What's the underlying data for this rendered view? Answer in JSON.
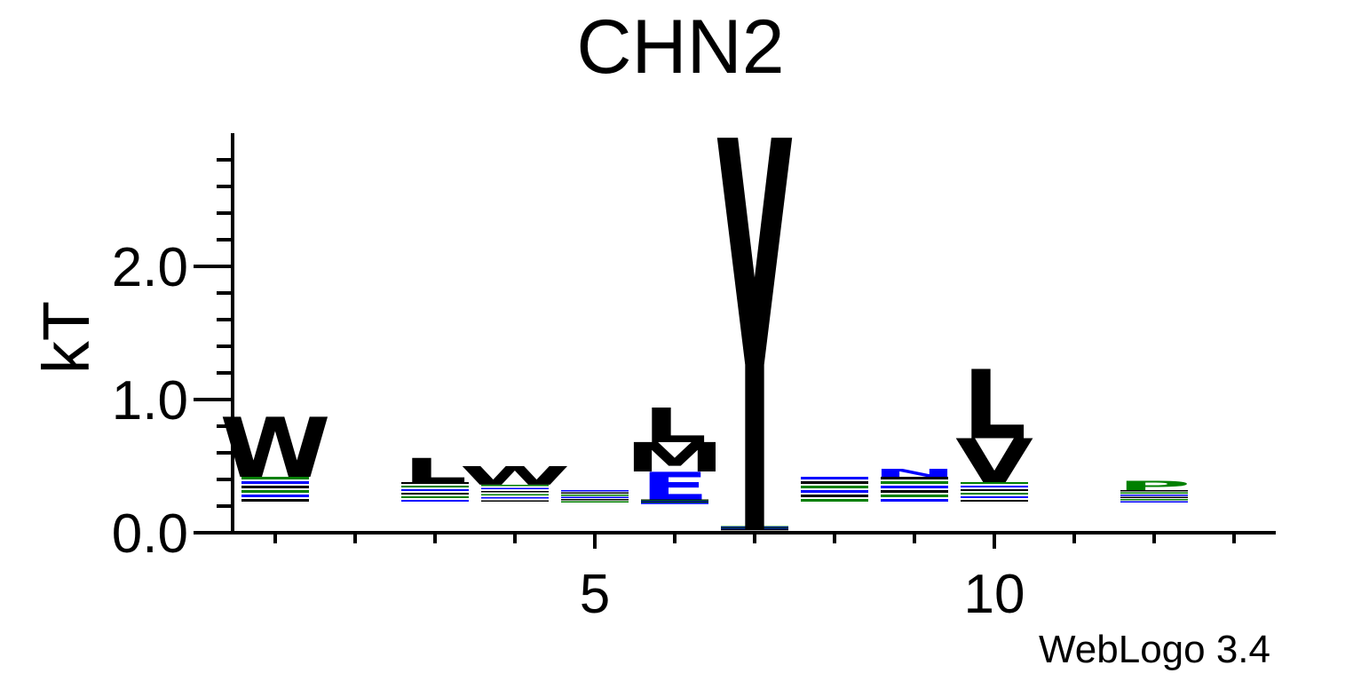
{
  "chart_data": {
    "type": "sequence-logo",
    "title": "CHN2",
    "ylabel": "kT",
    "xlabel": "",
    "ylim": [
      0,
      2.9
    ],
    "yticks": [
      "0.0",
      "1.0",
      "2.0"
    ],
    "xticks": [
      "5",
      "10"
    ],
    "positions": [
      1,
      2,
      3,
      4,
      5,
      6,
      7,
      8,
      9,
      10,
      11,
      12,
      13
    ],
    "colors": {
      "hydrophobic": "#000000",
      "polar": "#008000",
      "charged": "#0000ff"
    },
    "columns": [
      {
        "pos": 1,
        "letters": [
          {
            "aa": "W",
            "value": 0.45,
            "color": "#000000"
          }
        ],
        "minor_stack": 0.42
      },
      {
        "pos": 2,
        "letters": []
      },
      {
        "pos": 3,
        "letters": [
          {
            "aa": "L",
            "value": 0.18,
            "color": "#000000"
          }
        ],
        "minor_stack": 0.38
      },
      {
        "pos": 4,
        "letters": [
          {
            "aa": "W",
            "value": 0.14,
            "color": "#000000"
          }
        ],
        "minor_stack": 0.36
      },
      {
        "pos": 5,
        "letters": [],
        "minor_stack": 0.32
      },
      {
        "pos": 6,
        "letters": [
          {
            "aa": "L",
            "value": 0.26,
            "color": "#000000"
          },
          {
            "aa": "M",
            "value": 0.22,
            "color": "#000000"
          },
          {
            "aa": "E",
            "value": 0.21,
            "color": "#0000ff"
          }
        ],
        "minor_stack": 0.25
      },
      {
        "pos": 7,
        "letters": [
          {
            "aa": "Y",
            "value": 2.95,
            "color": "#000000"
          }
        ],
        "minor_stack": 0.05
      },
      {
        "pos": 8,
        "letters": [],
        "minor_stack": 0.42
      },
      {
        "pos": 9,
        "letters": [
          {
            "aa": "N",
            "value": 0.06,
            "color": "#0000ff"
          }
        ],
        "minor_stack": 0.42
      },
      {
        "pos": 10,
        "letters": [
          {
            "aa": "L",
            "value": 0.52,
            "color": "#000000"
          },
          {
            "aa": "V",
            "value": 0.33,
            "color": "#000000"
          }
        ],
        "minor_stack": 0.38
      },
      {
        "pos": 11,
        "letters": []
      },
      {
        "pos": 12,
        "letters": [
          {
            "aa": "P",
            "value": 0.07,
            "color": "#008000"
          }
        ],
        "minor_stack": 0.32
      },
      {
        "pos": 13,
        "letters": []
      }
    ]
  },
  "footer": {
    "credit": "WebLogo 3.4"
  }
}
